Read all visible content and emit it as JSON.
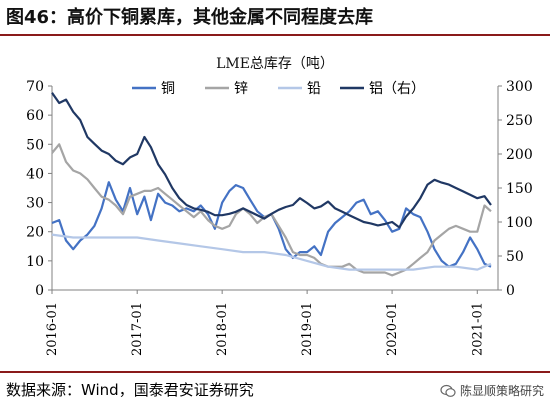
{
  "figure": {
    "title": "图46：高价下铜累库，其他金属不同程度去库",
    "source": "数据来源：Wind，国泰君安证券研究",
    "watermark": "陈显顺策略研究"
  },
  "colors": {
    "copper": "#4472C4",
    "zinc": "#A5A5A5",
    "lead": "#B4C7E7",
    "aluminum": "#203864",
    "rule": "#8a1a1a"
  },
  "chart_data": {
    "type": "line",
    "title": "LME总库存（吨）",
    "x_tick_labels": [
      "2016-01",
      "2017-01",
      "2018-01",
      "2019-01",
      "2020-01",
      "2021-01"
    ],
    "x_range": [
      "2016-01-01",
      "2021-03-31"
    ],
    "y_left": {
      "range": [
        0,
        70
      ],
      "ticks": [
        0,
        10,
        20,
        30,
        40,
        50,
        60,
        70
      ]
    },
    "y_right": {
      "range": [
        0,
        300
      ],
      "ticks": [
        0,
        50,
        100,
        150,
        200,
        250,
        300
      ]
    },
    "legend_position": "top",
    "series": [
      {
        "name": "铜",
        "axis": "left",
        "color_key": "copper",
        "points": [
          [
            "2016-01-01",
            23
          ],
          [
            "2016-02-01",
            24
          ],
          [
            "2016-03-01",
            17
          ],
          [
            "2016-04-01",
            14
          ],
          [
            "2016-05-01",
            17
          ],
          [
            "2016-06-01",
            19
          ],
          [
            "2016-07-01",
            22
          ],
          [
            "2016-08-01",
            28
          ],
          [
            "2016-09-01",
            37
          ],
          [
            "2016-10-01",
            31
          ],
          [
            "2016-11-01",
            27
          ],
          [
            "2016-12-01",
            35
          ],
          [
            "2017-01-01",
            26
          ],
          [
            "2017-02-01",
            32
          ],
          [
            "2017-03-01",
            24
          ],
          [
            "2017-04-01",
            33
          ],
          [
            "2017-05-01",
            30
          ],
          [
            "2017-06-01",
            29
          ],
          [
            "2017-07-01",
            27
          ],
          [
            "2017-08-01",
            28
          ],
          [
            "2017-09-01",
            27
          ],
          [
            "2017-10-01",
            29
          ],
          [
            "2017-11-01",
            26
          ],
          [
            "2017-12-01",
            21
          ],
          [
            "2018-01-01",
            30
          ],
          [
            "2018-02-01",
            34
          ],
          [
            "2018-03-01",
            36
          ],
          [
            "2018-04-01",
            35
          ],
          [
            "2018-05-01",
            31
          ],
          [
            "2018-06-01",
            27
          ],
          [
            "2018-07-01",
            25
          ],
          [
            "2018-08-01",
            26
          ],
          [
            "2018-09-01",
            21
          ],
          [
            "2018-10-01",
            14
          ],
          [
            "2018-11-01",
            11
          ],
          [
            "2018-12-01",
            13
          ],
          [
            "2019-01-01",
            13
          ],
          [
            "2019-02-01",
            15
          ],
          [
            "2019-03-01",
            12
          ],
          [
            "2019-04-01",
            20
          ],
          [
            "2019-05-01",
            23
          ],
          [
            "2019-06-01",
            25
          ],
          [
            "2019-07-01",
            27
          ],
          [
            "2019-08-01",
            30
          ],
          [
            "2019-09-01",
            31
          ],
          [
            "2019-10-01",
            26
          ],
          [
            "2019-11-01",
            27
          ],
          [
            "2019-12-01",
            24
          ],
          [
            "2020-01-01",
            20
          ],
          [
            "2020-02-01",
            21
          ],
          [
            "2020-03-01",
            28
          ],
          [
            "2020-04-01",
            26
          ],
          [
            "2020-05-01",
            25
          ],
          [
            "2020-06-01",
            20
          ],
          [
            "2020-07-01",
            14
          ],
          [
            "2020-08-01",
            10
          ],
          [
            "2020-09-01",
            8
          ],
          [
            "2020-10-01",
            9
          ],
          [
            "2020-11-01",
            13
          ],
          [
            "2020-12-01",
            18
          ],
          [
            "2021-01-01",
            14
          ],
          [
            "2021-02-01",
            9
          ],
          [
            "2021-03-01",
            8
          ]
        ]
      },
      {
        "name": "锌",
        "axis": "left",
        "color_key": "zinc",
        "points": [
          [
            "2016-01-01",
            47
          ],
          [
            "2016-02-01",
            50
          ],
          [
            "2016-03-01",
            44
          ],
          [
            "2016-04-01",
            41
          ],
          [
            "2016-05-01",
            40
          ],
          [
            "2016-06-01",
            38
          ],
          [
            "2016-07-01",
            35
          ],
          [
            "2016-08-01",
            32
          ],
          [
            "2016-09-01",
            31
          ],
          [
            "2016-10-01",
            29
          ],
          [
            "2016-11-01",
            26
          ],
          [
            "2016-12-01",
            32
          ],
          [
            "2017-01-01",
            33
          ],
          [
            "2017-02-01",
            34
          ],
          [
            "2017-03-01",
            34
          ],
          [
            "2017-04-01",
            35
          ],
          [
            "2017-05-01",
            33
          ],
          [
            "2017-06-01",
            31
          ],
          [
            "2017-07-01",
            29
          ],
          [
            "2017-08-01",
            27
          ],
          [
            "2017-09-01",
            25
          ],
          [
            "2017-10-01",
            27
          ],
          [
            "2017-11-01",
            24
          ],
          [
            "2017-12-01",
            22
          ],
          [
            "2018-01-01",
            21
          ],
          [
            "2018-02-01",
            22
          ],
          [
            "2018-03-01",
            26
          ],
          [
            "2018-04-01",
            28
          ],
          [
            "2018-05-01",
            26
          ],
          [
            "2018-06-01",
            23
          ],
          [
            "2018-07-01",
            25
          ],
          [
            "2018-08-01",
            26
          ],
          [
            "2018-09-01",
            22
          ],
          [
            "2018-10-01",
            18
          ],
          [
            "2018-11-01",
            13
          ],
          [
            "2018-12-01",
            12
          ],
          [
            "2019-01-01",
            12
          ],
          [
            "2019-02-01",
            11
          ],
          [
            "2019-03-01",
            9
          ],
          [
            "2019-04-01",
            8
          ],
          [
            "2019-05-01",
            8
          ],
          [
            "2019-06-01",
            8
          ],
          [
            "2019-07-01",
            9
          ],
          [
            "2019-08-01",
            7
          ],
          [
            "2019-09-01",
            6
          ],
          [
            "2019-10-01",
            6
          ],
          [
            "2019-11-01",
            6
          ],
          [
            "2019-12-01",
            6
          ],
          [
            "2020-01-01",
            5
          ],
          [
            "2020-02-01",
            6
          ],
          [
            "2020-03-01",
            7
          ],
          [
            "2020-04-01",
            9
          ],
          [
            "2020-05-01",
            11
          ],
          [
            "2020-06-01",
            13
          ],
          [
            "2020-07-01",
            17
          ],
          [
            "2020-08-01",
            19
          ],
          [
            "2020-09-01",
            21
          ],
          [
            "2020-10-01",
            22
          ],
          [
            "2020-11-01",
            21
          ],
          [
            "2020-12-01",
            20
          ],
          [
            "2021-01-01",
            20
          ],
          [
            "2021-02-01",
            29
          ],
          [
            "2021-03-01",
            27
          ]
        ]
      },
      {
        "name": "铅",
        "axis": "left",
        "color_key": "lead",
        "points": [
          [
            "2016-01-01",
            19
          ],
          [
            "2016-04-01",
            18
          ],
          [
            "2016-07-01",
            18
          ],
          [
            "2016-10-01",
            18
          ],
          [
            "2017-01-01",
            18
          ],
          [
            "2017-04-01",
            17
          ],
          [
            "2017-07-01",
            16
          ],
          [
            "2017-10-01",
            15
          ],
          [
            "2018-01-01",
            14
          ],
          [
            "2018-04-01",
            13
          ],
          [
            "2018-07-01",
            13
          ],
          [
            "2018-10-01",
            12
          ],
          [
            "2019-01-01",
            10
          ],
          [
            "2019-04-01",
            8
          ],
          [
            "2019-07-01",
            7
          ],
          [
            "2019-10-01",
            7
          ],
          [
            "2020-01-01",
            7
          ],
          [
            "2020-04-01",
            7
          ],
          [
            "2020-07-01",
            8
          ],
          [
            "2020-10-01",
            8
          ],
          [
            "2021-01-01",
            7
          ],
          [
            "2021-03-01",
            9
          ]
        ]
      },
      {
        "name": "铝（右）",
        "axis": "right",
        "color_key": "aluminum",
        "points": [
          [
            "2016-01-01",
            290
          ],
          [
            "2016-02-01",
            275
          ],
          [
            "2016-03-01",
            280
          ],
          [
            "2016-04-01",
            262
          ],
          [
            "2016-05-01",
            250
          ],
          [
            "2016-06-01",
            225
          ],
          [
            "2016-07-01",
            215
          ],
          [
            "2016-08-01",
            205
          ],
          [
            "2016-09-01",
            200
          ],
          [
            "2016-10-01",
            190
          ],
          [
            "2016-11-01",
            185
          ],
          [
            "2016-12-01",
            195
          ],
          [
            "2017-01-01",
            200
          ],
          [
            "2017-02-01",
            225
          ],
          [
            "2017-03-01",
            210
          ],
          [
            "2017-04-01",
            185
          ],
          [
            "2017-05-01",
            170
          ],
          [
            "2017-06-01",
            150
          ],
          [
            "2017-07-01",
            135
          ],
          [
            "2017-08-01",
            125
          ],
          [
            "2017-09-01",
            120
          ],
          [
            "2017-10-01",
            118
          ],
          [
            "2017-11-01",
            115
          ],
          [
            "2017-12-01",
            110
          ],
          [
            "2018-01-01",
            110
          ],
          [
            "2018-02-01",
            112
          ],
          [
            "2018-03-01",
            115
          ],
          [
            "2018-04-01",
            120
          ],
          [
            "2018-05-01",
            115
          ],
          [
            "2018-06-01",
            110
          ],
          [
            "2018-07-01",
            105
          ],
          [
            "2018-08-01",
            112
          ],
          [
            "2018-09-01",
            118
          ],
          [
            "2018-10-01",
            122
          ],
          [
            "2018-11-01",
            125
          ],
          [
            "2018-12-01",
            135
          ],
          [
            "2019-01-01",
            128
          ],
          [
            "2019-02-01",
            120
          ],
          [
            "2019-03-01",
            123
          ],
          [
            "2019-04-01",
            130
          ],
          [
            "2019-05-01",
            120
          ],
          [
            "2019-06-01",
            115
          ],
          [
            "2019-07-01",
            110
          ],
          [
            "2019-08-01",
            105
          ],
          [
            "2019-09-01",
            100
          ],
          [
            "2019-10-01",
            98
          ],
          [
            "2019-11-01",
            95
          ],
          [
            "2019-12-01",
            97
          ],
          [
            "2020-01-01",
            100
          ],
          [
            "2020-02-01",
            92
          ],
          [
            "2020-03-01",
            108
          ],
          [
            "2020-04-01",
            120
          ],
          [
            "2020-05-01",
            135
          ],
          [
            "2020-06-01",
            155
          ],
          [
            "2020-07-01",
            162
          ],
          [
            "2020-08-01",
            158
          ],
          [
            "2020-09-01",
            155
          ],
          [
            "2020-10-01",
            150
          ],
          [
            "2020-11-01",
            145
          ],
          [
            "2020-12-01",
            140
          ],
          [
            "2021-01-01",
            135
          ],
          [
            "2021-02-01",
            138
          ],
          [
            "2021-03-01",
            125
          ]
        ]
      }
    ]
  }
}
